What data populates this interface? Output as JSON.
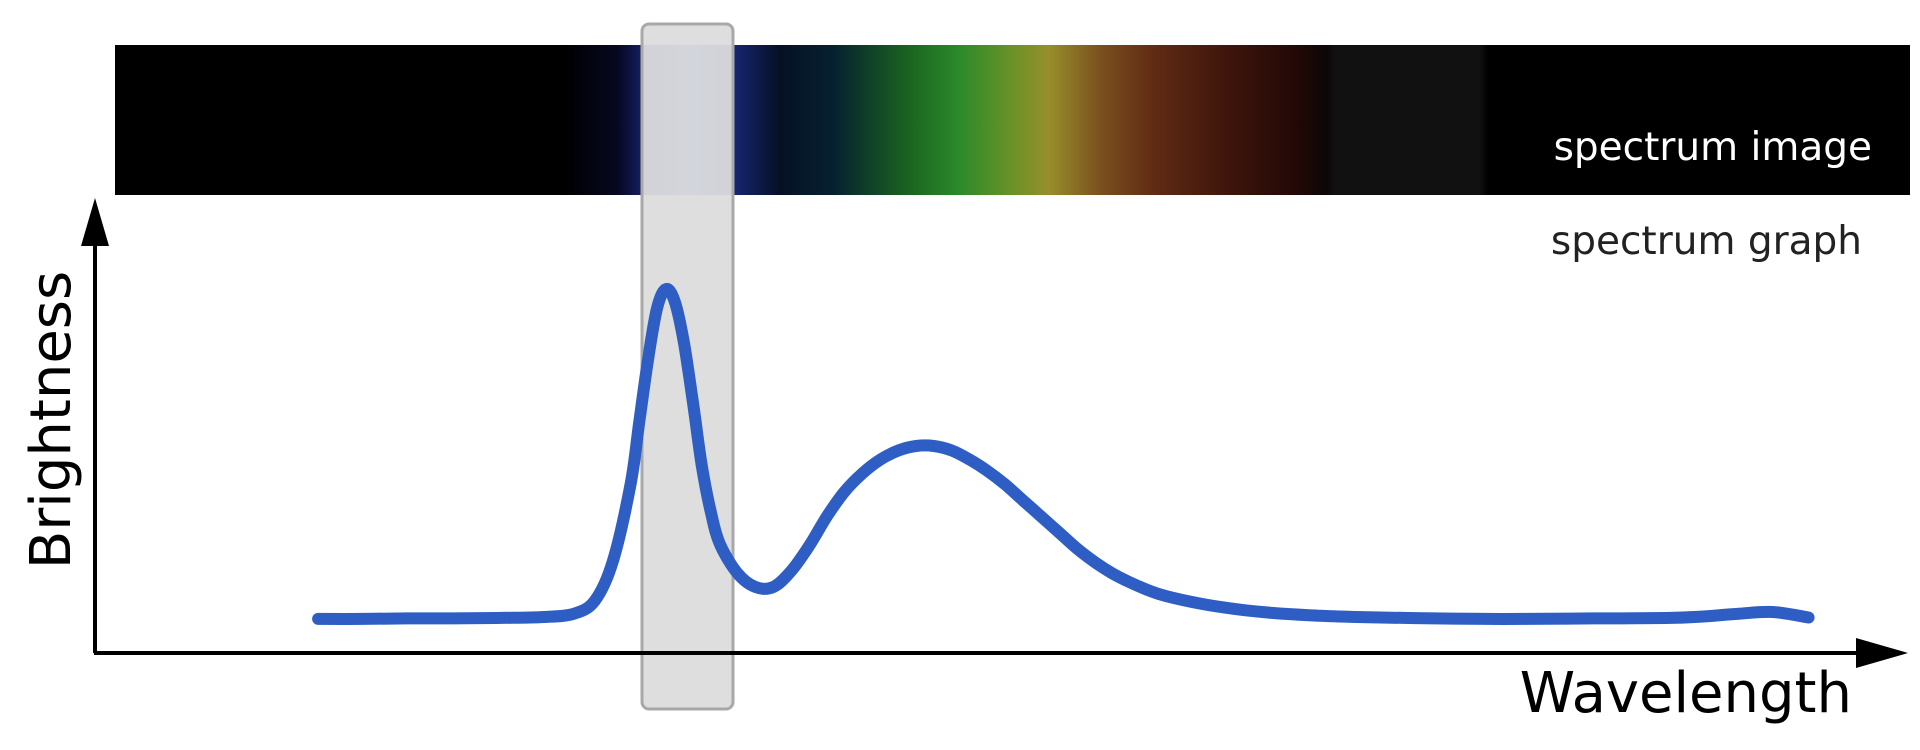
{
  "chart_data": {
    "type": "line",
    "title": "",
    "xlabel": "Wavelength",
    "ylabel": "Brightness",
    "xlim": [
      0,
      100
    ],
    "ylim": [
      0,
      100
    ],
    "grid": false,
    "legend": "none",
    "annotations": {
      "spectrum_image_label": "spectrum image",
      "spectrum_graph_label": "spectrum graph",
      "highlight_band": [
        30.0,
        34.8
      ]
    },
    "spectrum_image_colors": [
      {
        "x": 0,
        "color": "#000000"
      },
      {
        "x": 25,
        "color": "#000000"
      },
      {
        "x": 28,
        "color": "#070820"
      },
      {
        "x": 30,
        "color": "#1a2a80"
      },
      {
        "x": 32,
        "color": "#2f5ad8"
      },
      {
        "x": 34,
        "color": "#1a2a80"
      },
      {
        "x": 37,
        "color": "#061025"
      },
      {
        "x": 40,
        "color": "#062030"
      },
      {
        "x": 44,
        "color": "#1a6020"
      },
      {
        "x": 47,
        "color": "#2b8a2a"
      },
      {
        "x": 50,
        "color": "#6a9228"
      },
      {
        "x": 52,
        "color": "#968f2c"
      },
      {
        "x": 55,
        "color": "#7a4e1e"
      },
      {
        "x": 58,
        "color": "#5e2a14"
      },
      {
        "x": 62,
        "color": "#3e150c"
      },
      {
        "x": 66,
        "color": "#200806"
      },
      {
        "x": 67.5,
        "color": "#0c0707"
      },
      {
        "x": 68,
        "color": "#111111"
      },
      {
        "x": 76,
        "color": "#111111"
      },
      {
        "x": 76.5,
        "color": "#000000"
      },
      {
        "x": 100,
        "color": "#000000"
      }
    ],
    "series": [
      {
        "color": "#2e5ec4",
        "x": [
          12.5,
          15,
          17.5,
          20,
          22.5,
          25,
          26.8,
          28,
          29,
          30,
          30.5,
          31,
          31.5,
          32,
          32.5,
          33,
          33.5,
          34,
          34.5,
          35,
          36,
          37,
          38,
          39,
          40,
          41,
          42,
          43,
          44,
          45,
          46,
          47,
          48,
          49,
          50,
          51,
          52,
          53,
          54,
          55,
          56,
          57,
          58,
          59,
          60,
          62,
          64,
          66,
          68,
          70,
          72,
          75,
          78,
          80,
          84,
          88,
          90,
          92,
          94,
          96
        ],
        "y": [
          7.5,
          7.5,
          7.6,
          7.6,
          7.7,
          7.9,
          8.6,
          11.5,
          20,
          37,
          51,
          65,
          76,
          80,
          77,
          68,
          55,
          41,
          31,
          24,
          17.5,
          14.5,
          14.5,
          18,
          23.5,
          30,
          35.5,
          39.5,
          42.5,
          44.5,
          45.5,
          45.5,
          44.5,
          42.5,
          40,
          37,
          33.5,
          30,
          26.5,
          23,
          20,
          17.5,
          15.5,
          13.8,
          12.5,
          10.8,
          9.6,
          8.8,
          8.3,
          8.0,
          7.8,
          7.6,
          7.5,
          7.5,
          7.6,
          7.7,
          8.0,
          8.6,
          9.0,
          7.8
        ]
      }
    ]
  }
}
